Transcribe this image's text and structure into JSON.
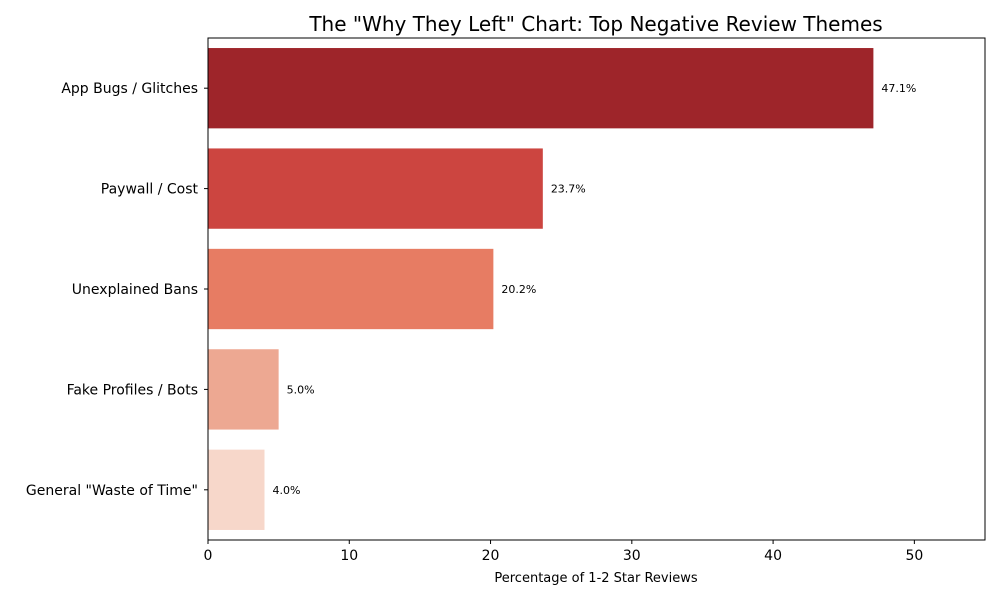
{
  "chart_data": {
    "type": "bar",
    "orientation": "horizontal",
    "title": "The \"Why They Left\" Chart: Top Negative Review Themes",
    "xlabel": "Percentage of 1-2 Star Reviews",
    "ylabel": "",
    "categories": [
      "App Bugs / Glitches",
      "Paywall / Cost",
      "Unexplained Bans",
      "Fake Profiles / Bots",
      "General \"Waste of Time\""
    ],
    "values": [
      47.1,
      23.7,
      20.2,
      5.0,
      4.0
    ],
    "data_labels": [
      "47.1%",
      "23.7%",
      "20.2%",
      "5.0%",
      "4.0%"
    ],
    "colors": [
      "#9e252a",
      "#cc4540",
      "#e77c63",
      "#eda892",
      "#f7d7ca"
    ],
    "xlim": [
      0,
      55
    ],
    "xticks": [
      0,
      10,
      20,
      30,
      40,
      50
    ],
    "grid": false,
    "legend": "none"
  }
}
